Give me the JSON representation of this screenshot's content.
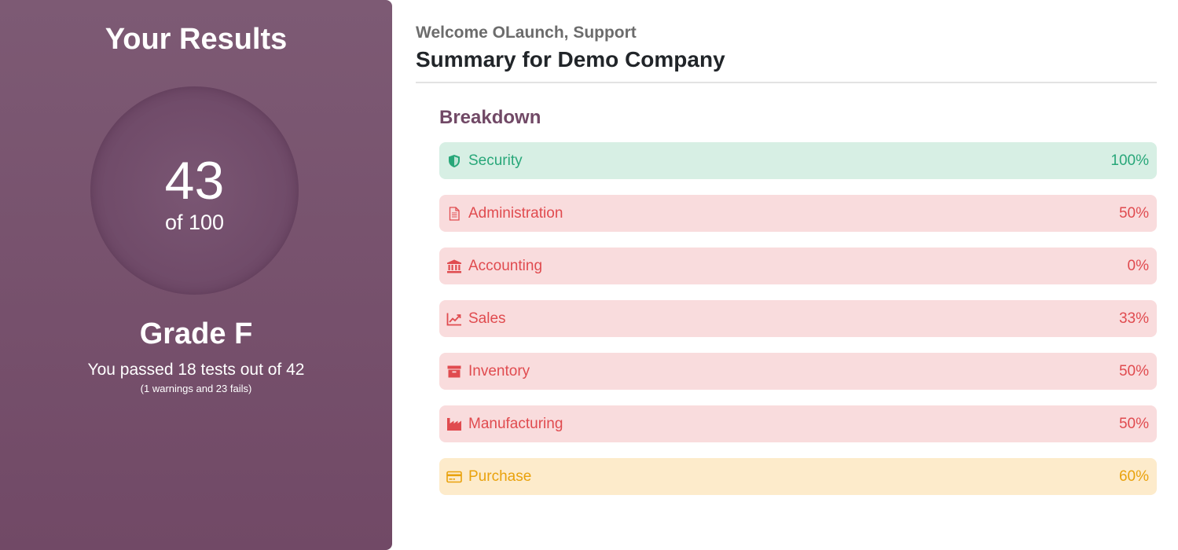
{
  "results": {
    "title": "Your Results",
    "score": "43",
    "score_max": "of 100",
    "grade": "Grade F",
    "passed_text": "You passed 18 tests out of 42",
    "fails_text": "(1 warnings and 23 fails)"
  },
  "summary": {
    "welcome": "Welcome OLaunch, Support",
    "title": "Summary for Demo Company",
    "breakdown_title": "Breakdown"
  },
  "breakdown": [
    {
      "label": "Security",
      "percent": "100%",
      "status": "success",
      "icon": "shield-icon"
    },
    {
      "label": "Administration",
      "percent": "50%",
      "status": "danger",
      "icon": "document-icon"
    },
    {
      "label": "Accounting",
      "percent": "0%",
      "status": "danger",
      "icon": "bank-icon"
    },
    {
      "label": "Sales",
      "percent": "33%",
      "status": "danger",
      "icon": "line-chart-icon"
    },
    {
      "label": "Inventory",
      "percent": "50%",
      "status": "danger",
      "icon": "archive-box-icon"
    },
    {
      "label": "Manufacturing",
      "percent": "50%",
      "status": "danger",
      "icon": "factory-icon"
    },
    {
      "label": "Purchase",
      "percent": "60%",
      "status": "warning",
      "icon": "credit-card-icon"
    }
  ],
  "colors": {
    "panel": "#7d5a74",
    "success": "#28a779",
    "danger": "#e04b4f",
    "warning": "#e9a20d"
  }
}
